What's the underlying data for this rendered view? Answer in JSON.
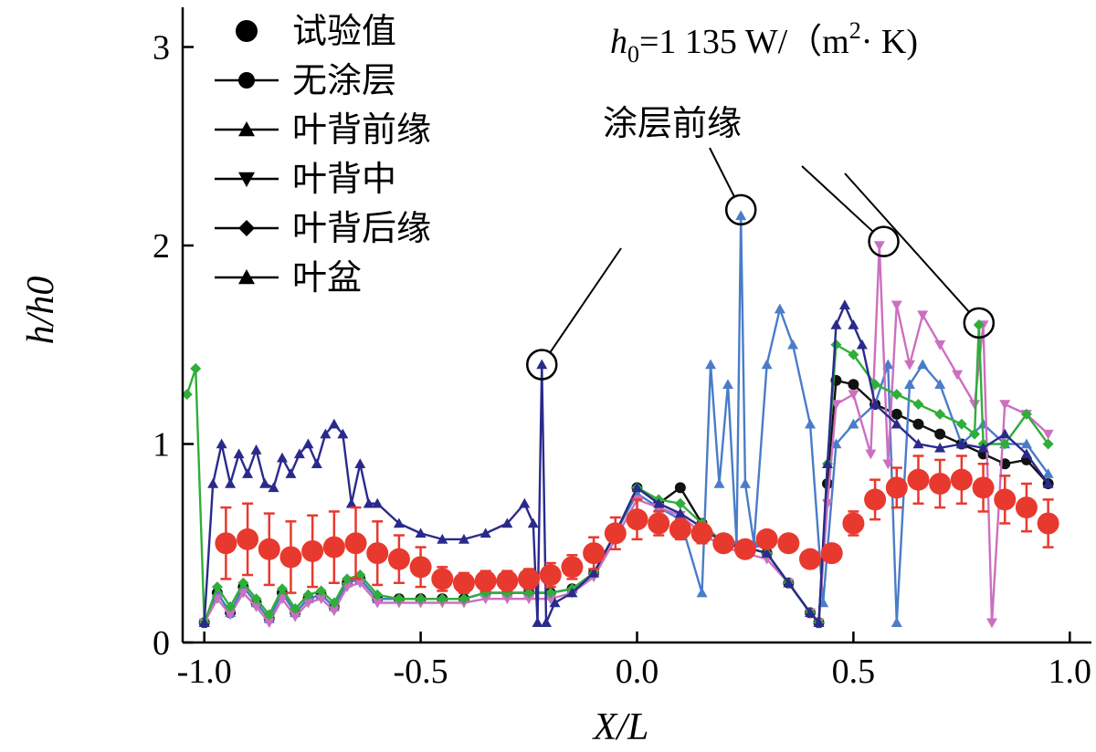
{
  "chart_data": {
    "type": "line",
    "title": "",
    "xlabel": "X/L",
    "ylabel": "h/h0",
    "xlim": [
      -1.05,
      1.05
    ],
    "ylim": [
      0,
      3.2
    ],
    "xticks": [
      "-1.0",
      "-0.5",
      "0.0",
      "0.5",
      "1.0"
    ],
    "xtick_values": [
      -1.0,
      -0.5,
      0.0,
      0.5,
      1.0
    ],
    "yticks": [
      "0",
      "1",
      "2",
      "3"
    ],
    "ytick_values": [
      0,
      1,
      2,
      3
    ],
    "formula": {
      "prefix": "h",
      "sub": "0",
      "middle": "=1 135 W/（m",
      "sup": "2",
      "suffix": "· K)"
    },
    "annotation_label": "涂层前缘",
    "annotations": [
      {
        "x": -0.22,
        "y": 1.4
      },
      {
        "x": 0.24,
        "y": 2.18
      },
      {
        "x": 0.57,
        "y": 2.02
      },
      {
        "x": 0.79,
        "y": 1.61
      }
    ],
    "series": [
      {
        "name": "试验值",
        "color": "#e8392e",
        "marker": "circle-errorbar",
        "x": [
          -0.95,
          -0.9,
          -0.85,
          -0.8,
          -0.75,
          -0.7,
          -0.65,
          -0.6,
          -0.55,
          -0.5,
          -0.45,
          -0.4,
          -0.35,
          -0.3,
          -0.25,
          -0.2,
          -0.15,
          -0.1,
          -0.05,
          0.0,
          0.05,
          0.1,
          0.15,
          0.2,
          0.25,
          0.3,
          0.35,
          0.4,
          0.45,
          0.5,
          0.55,
          0.6,
          0.65,
          0.7,
          0.75,
          0.8,
          0.85,
          0.9,
          0.95
        ],
        "y": [
          0.5,
          0.52,
          0.47,
          0.43,
          0.46,
          0.48,
          0.5,
          0.45,
          0.42,
          0.38,
          0.32,
          0.3,
          0.31,
          0.31,
          0.32,
          0.34,
          0.38,
          0.45,
          0.55,
          0.62,
          0.6,
          0.57,
          0.55,
          0.5,
          0.47,
          0.52,
          0.5,
          0.42,
          0.45,
          0.6,
          0.72,
          0.78,
          0.82,
          0.8,
          0.82,
          0.78,
          0.72,
          0.68,
          0.6
        ],
        "err": [
          0.18,
          0.18,
          0.18,
          0.18,
          0.18,
          0.18,
          0.18,
          0.16,
          0.12,
          0.1,
          0.06,
          0.05,
          0.05,
          0.05,
          0.05,
          0.06,
          0.06,
          0.08,
          0.08,
          0.1,
          0.06,
          0.05,
          0.05,
          0.04,
          0.04,
          0.04,
          0.04,
          0.04,
          0.04,
          0.06,
          0.1,
          0.1,
          0.12,
          0.12,
          0.12,
          0.12,
          0.12,
          0.12,
          0.12
        ]
      },
      {
        "name": "无涂层",
        "color": "#111111",
        "marker": "circle",
        "x": [
          -1.0,
          -0.97,
          -0.94,
          -0.91,
          -0.88,
          -0.85,
          -0.82,
          -0.79,
          -0.76,
          -0.73,
          -0.7,
          -0.67,
          -0.64,
          -0.6,
          -0.55,
          -0.5,
          -0.45,
          -0.4,
          -0.35,
          -0.3,
          -0.25,
          -0.2,
          -0.15,
          -0.1,
          -0.05,
          0.0,
          0.05,
          0.1,
          0.15,
          0.2,
          0.25,
          0.3,
          0.35,
          0.4,
          0.42,
          0.44,
          0.46,
          0.5,
          0.55,
          0.6,
          0.65,
          0.7,
          0.75,
          0.8,
          0.85,
          0.9,
          0.95
        ],
        "y": [
          0.1,
          0.25,
          0.15,
          0.28,
          0.2,
          0.12,
          0.25,
          0.15,
          0.22,
          0.24,
          0.18,
          0.3,
          0.32,
          0.22,
          0.22,
          0.22,
          0.22,
          0.22,
          0.25,
          0.25,
          0.25,
          0.25,
          0.27,
          0.35,
          0.55,
          0.78,
          0.7,
          0.78,
          0.6,
          0.5,
          0.48,
          0.45,
          0.3,
          0.15,
          0.1,
          0.8,
          1.32,
          1.3,
          1.2,
          1.15,
          1.1,
          1.05,
          1.0,
          0.95,
          0.9,
          0.92,
          0.8
        ]
      },
      {
        "name": "叶背前缘",
        "color": "#4a7cc8",
        "marker": "triangle-up",
        "x": [
          -1.0,
          -0.97,
          -0.94,
          -0.91,
          -0.88,
          -0.85,
          -0.82,
          -0.79,
          -0.76,
          -0.73,
          -0.7,
          -0.67,
          -0.64,
          -0.6,
          -0.55,
          -0.5,
          -0.45,
          -0.4,
          -0.35,
          -0.3,
          -0.25,
          -0.2,
          -0.15,
          -0.1,
          -0.05,
          0.0,
          0.05,
          0.1,
          0.15,
          0.17,
          0.19,
          0.21,
          0.23,
          0.24,
          0.25,
          0.27,
          0.3,
          0.33,
          0.36,
          0.4,
          0.43,
          0.46,
          0.5,
          0.55,
          0.58,
          0.6,
          0.63,
          0.66,
          0.7,
          0.75,
          0.8,
          0.85,
          0.9,
          0.95
        ],
        "y": [
          0.1,
          0.25,
          0.15,
          0.28,
          0.2,
          0.12,
          0.25,
          0.15,
          0.22,
          0.24,
          0.18,
          0.3,
          0.32,
          0.22,
          0.22,
          0.22,
          0.22,
          0.22,
          0.25,
          0.25,
          0.25,
          0.25,
          0.27,
          0.35,
          0.55,
          0.75,
          0.68,
          0.62,
          0.25,
          1.4,
          0.8,
          1.3,
          0.5,
          2.15,
          0.8,
          0.5,
          1.4,
          1.68,
          1.5,
          1.1,
          0.2,
          1.0,
          1.1,
          1.2,
          1.4,
          0.1,
          1.3,
          1.4,
          1.3,
          1.0,
          1.1,
          1.0,
          1.0,
          0.85
        ]
      },
      {
        "name": "叶背中",
        "color": "#cc6fc0",
        "marker": "triangle-down",
        "x": [
          -1.0,
          -0.97,
          -0.94,
          -0.91,
          -0.88,
          -0.85,
          -0.82,
          -0.79,
          -0.76,
          -0.73,
          -0.7,
          -0.67,
          -0.64,
          -0.6,
          -0.55,
          -0.5,
          -0.45,
          -0.4,
          -0.35,
          -0.3,
          -0.25,
          -0.2,
          -0.15,
          -0.1,
          -0.05,
          0.0,
          0.05,
          0.1,
          0.15,
          0.2,
          0.25,
          0.3,
          0.35,
          0.4,
          0.42,
          0.44,
          0.46,
          0.5,
          0.54,
          0.56,
          0.58,
          0.6,
          0.63,
          0.66,
          0.7,
          0.74,
          0.78,
          0.8,
          0.82,
          0.85,
          0.9,
          0.95
        ],
        "y": [
          0.1,
          0.22,
          0.14,
          0.25,
          0.18,
          0.1,
          0.22,
          0.13,
          0.2,
          0.22,
          0.16,
          0.28,
          0.3,
          0.2,
          0.2,
          0.2,
          0.2,
          0.2,
          0.22,
          0.22,
          0.22,
          0.22,
          0.25,
          0.33,
          0.52,
          0.72,
          0.68,
          0.64,
          0.55,
          0.48,
          0.45,
          0.42,
          0.3,
          0.15,
          0.1,
          0.7,
          1.2,
          1.25,
          0.95,
          2.0,
          0.9,
          1.7,
          1.4,
          1.65,
          1.5,
          1.35,
          1.2,
          1.6,
          0.1,
          1.2,
          1.15,
          1.05
        ]
      },
      {
        "name": "叶背后缘",
        "color": "#2fae3a",
        "marker": "diamond",
        "x": [
          -1.04,
          -1.02,
          -1.0,
          -0.97,
          -0.94,
          -0.91,
          -0.88,
          -0.85,
          -0.82,
          -0.79,
          -0.76,
          -0.73,
          -0.7,
          -0.67,
          -0.64,
          -0.6,
          -0.55,
          -0.5,
          -0.45,
          -0.4,
          -0.35,
          -0.3,
          -0.25,
          -0.2,
          -0.15,
          -0.1,
          -0.05,
          0.0,
          0.05,
          0.1,
          0.15,
          0.2,
          0.25,
          0.3,
          0.35,
          0.4,
          0.42,
          0.44,
          0.46,
          0.5,
          0.55,
          0.6,
          0.65,
          0.7,
          0.75,
          0.78,
          0.79,
          0.8,
          0.85,
          0.9,
          0.95
        ],
        "y": [
          1.25,
          1.38,
          0.1,
          0.28,
          0.18,
          0.3,
          0.22,
          0.14,
          0.27,
          0.17,
          0.24,
          0.26,
          0.2,
          0.32,
          0.34,
          0.24,
          0.22,
          0.22,
          0.22,
          0.22,
          0.25,
          0.25,
          0.25,
          0.25,
          0.27,
          0.35,
          0.55,
          0.78,
          0.72,
          0.7,
          0.6,
          0.5,
          0.48,
          0.45,
          0.3,
          0.15,
          0.1,
          0.9,
          1.5,
          1.45,
          1.3,
          1.25,
          1.2,
          1.15,
          1.1,
          1.05,
          1.6,
          1.0,
          1.0,
          1.15,
          1.0
        ]
      },
      {
        "name": "叶盆",
        "color": "#2a2a8c",
        "marker": "triangle-up",
        "x": [
          -1.0,
          -0.98,
          -0.96,
          -0.94,
          -0.92,
          -0.9,
          -0.88,
          -0.86,
          -0.84,
          -0.82,
          -0.8,
          -0.78,
          -0.76,
          -0.74,
          -0.72,
          -0.7,
          -0.68,
          -0.66,
          -0.64,
          -0.62,
          -0.6,
          -0.55,
          -0.5,
          -0.45,
          -0.4,
          -0.35,
          -0.3,
          -0.26,
          -0.24,
          -0.23,
          -0.22,
          -0.21,
          -0.19,
          -0.15,
          -0.1,
          -0.05,
          0.0,
          0.05,
          0.1,
          0.15,
          0.2,
          0.25,
          0.3,
          0.35,
          0.4,
          0.42,
          0.44,
          0.46,
          0.48,
          0.5,
          0.52,
          0.55,
          0.6,
          0.65,
          0.7,
          0.75,
          0.8,
          0.85,
          0.9,
          0.95
        ],
        "y": [
          0.1,
          0.8,
          1.0,
          0.8,
          0.95,
          0.85,
          0.97,
          0.8,
          0.78,
          0.93,
          0.85,
          0.95,
          1.0,
          0.9,
          1.05,
          1.1,
          1.05,
          0.7,
          0.9,
          0.7,
          0.7,
          0.6,
          0.55,
          0.52,
          0.52,
          0.55,
          0.6,
          0.7,
          0.6,
          0.1,
          1.4,
          0.1,
          0.2,
          0.25,
          0.35,
          0.55,
          0.78,
          0.7,
          0.65,
          0.58,
          0.5,
          0.48,
          0.45,
          0.3,
          0.15,
          0.1,
          0.9,
          1.6,
          1.7,
          1.6,
          1.5,
          1.2,
          1.1,
          1.0,
          0.98,
          1.0,
          0.98,
          1.05,
          0.95,
          0.8
        ]
      }
    ]
  }
}
